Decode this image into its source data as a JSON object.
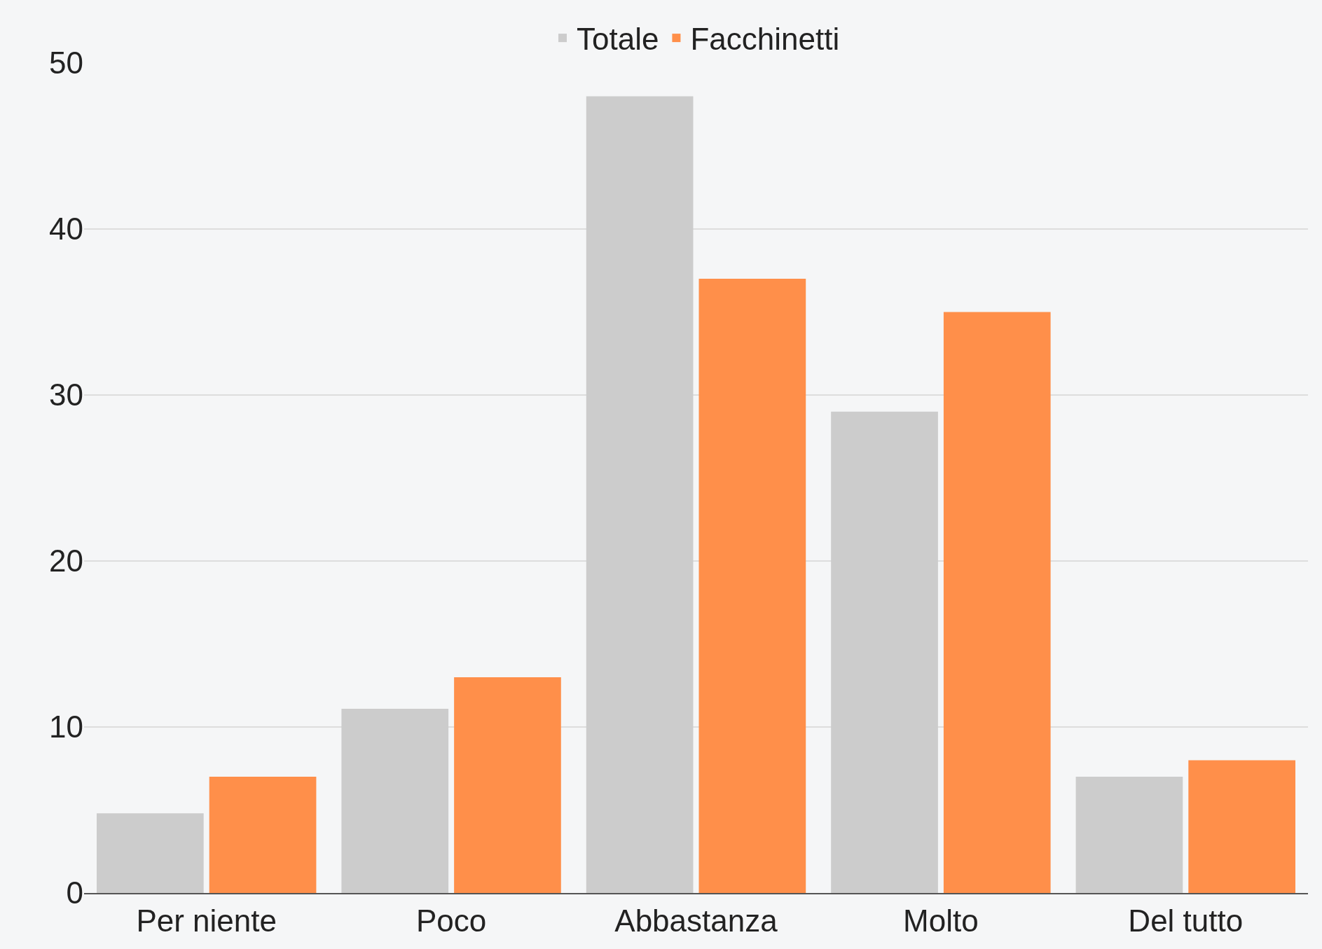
{
  "chart_data": {
    "type": "bar",
    "categories": [
      "Per niente",
      "Poco",
      "Abbastanza",
      "Molto",
      "Del tutto"
    ],
    "series": [
      {
        "name": "Totale",
        "color": "#cccccc",
        "values": [
          4.8,
          11.1,
          48,
          29,
          7
        ]
      },
      {
        "name": "Facchinetti",
        "color": "#ff8f4a",
        "values": [
          7,
          13,
          37,
          35,
          8
        ]
      }
    ],
    "ylim": [
      0,
      50
    ],
    "yticks": [
      0,
      10,
      20,
      30,
      40,
      50
    ],
    "grid": "y",
    "legend": "top"
  }
}
